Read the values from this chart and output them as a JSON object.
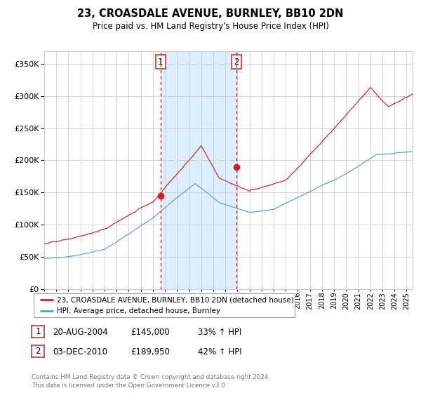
{
  "title": "23, CROASDALE AVENUE, BURNLEY, BB10 2DN",
  "subtitle": "Price paid vs. HM Land Registry's House Price Index (HPI)",
  "hpi_label": "HPI: Average price, detached house, Burnley",
  "property_label": "23, CROASDALE AVENUE, BURNLEY, BB10 2DN (detached house)",
  "purchase1_date": "20-AUG-2004",
  "purchase1_price": 145000,
  "purchase1_pct": "33%",
  "purchase1_year": 2004.637,
  "purchase2_date": "03-DEC-2010",
  "purchase2_price": 189950,
  "purchase2_pct": "42%",
  "purchase2_year": 2010.921,
  "hpi_color": "#6699cc",
  "property_color": "#cc2222",
  "dot_color": "#cc2222",
  "shade_color": "#ddeeff",
  "vline_color": "#cc2222",
  "grid_color": "#cccccc",
  "background_color": "#ffffff",
  "ylim": [
    0,
    370000
  ],
  "xlim_start": 1995.0,
  "xlim_end": 2025.5,
  "footer": "Contains HM Land Registry data © Crown copyright and database right 2024.\nThis data is licensed under the Open Government Licence v3.0."
}
